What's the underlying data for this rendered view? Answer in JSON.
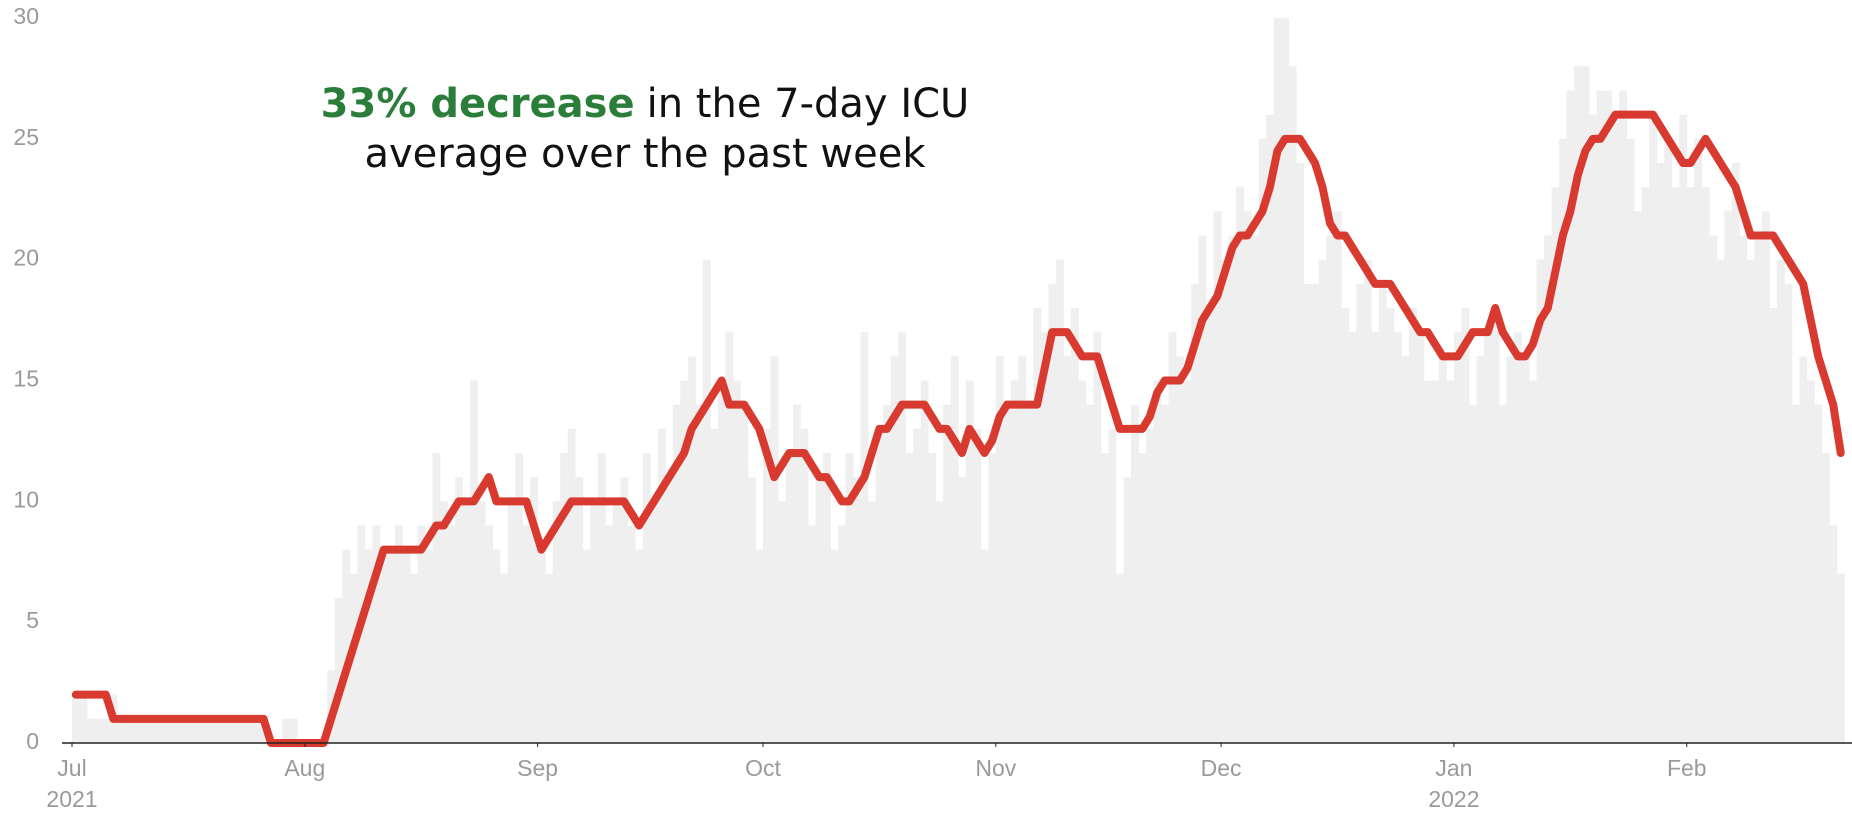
{
  "chart_data": {
    "type": "bar",
    "annotation": {
      "highlight": "33% decrease",
      "lines": [
        "in the 7-day ICU",
        "average over the past week"
      ]
    },
    "xlim": [
      0,
      237
    ],
    "xticks": [
      {
        "value": 0,
        "label": "Jul",
        "sublabel": "2021"
      },
      {
        "value": 31,
        "label": "Aug"
      },
      {
        "value": 62,
        "label": "Sep"
      },
      {
        "value": 92,
        "label": "Oct"
      },
      {
        "value": 123,
        "label": "Nov"
      },
      {
        "value": 153,
        "label": "Dec"
      },
      {
        "value": 184,
        "label": "Jan",
        "sublabel": "2022"
      },
      {
        "value": 215,
        "label": "Feb"
      }
    ],
    "ylim": [
      0,
      30
    ],
    "yticks": [
      0,
      5,
      10,
      15,
      20,
      25,
      30
    ],
    "grid": false,
    "x": [
      0,
      1,
      2,
      3,
      4,
      5,
      6,
      7,
      8,
      9,
      10,
      11,
      12,
      13,
      14,
      15,
      16,
      17,
      18,
      19,
      20,
      21,
      22,
      23,
      24,
      25,
      26,
      27,
      28,
      29,
      30,
      31,
      32,
      33,
      34,
      35,
      36,
      37,
      38,
      39,
      40,
      41,
      42,
      43,
      44,
      45,
      46,
      47,
      48,
      49,
      50,
      51,
      52,
      53,
      54,
      55,
      56,
      57,
      58,
      59,
      60,
      61,
      62,
      63,
      64,
      65,
      66,
      67,
      68,
      69,
      70,
      71,
      72,
      73,
      74,
      75,
      76,
      77,
      78,
      79,
      80,
      81,
      82,
      83,
      84,
      85,
      86,
      87,
      88,
      89,
      90,
      91,
      92,
      93,
      94,
      95,
      96,
      97,
      98,
      99,
      100,
      101,
      102,
      103,
      104,
      105,
      106,
      107,
      108,
      109,
      110,
      111,
      112,
      113,
      114,
      115,
      116,
      117,
      118,
      119,
      120,
      121,
      122,
      123,
      124,
      125,
      126,
      127,
      128,
      129,
      130,
      131,
      132,
      133,
      134,
      135,
      136,
      137,
      138,
      139,
      140,
      141,
      142,
      143,
      144,
      145,
      146,
      147,
      148,
      149,
      150,
      151,
      152,
      153,
      154,
      155,
      156,
      157,
      158,
      159,
      160,
      161,
      162,
      163,
      164,
      165,
      166,
      167,
      168,
      169,
      170,
      171,
      172,
      173,
      174,
      175,
      176,
      177,
      178,
      179,
      180,
      181,
      182,
      183,
      184,
      185,
      186,
      187,
      188,
      189,
      190,
      191,
      192,
      193,
      194,
      195,
      196,
      197,
      198,
      199,
      200,
      201,
      202,
      203,
      204,
      205,
      206,
      207,
      208,
      209,
      210,
      211,
      212,
      213,
      214,
      215,
      216,
      217,
      218,
      219,
      220,
      221,
      222,
      223,
      224,
      225,
      226,
      227,
      228,
      229,
      230,
      231,
      232,
      233,
      234,
      235
    ],
    "series": [
      {
        "type": "bar",
        "color": "#efefef",
        "values": [
          2,
          2,
          1,
          1,
          1,
          2,
          1,
          1,
          1,
          1,
          1,
          1,
          1,
          1,
          1,
          1,
          1,
          1,
          1,
          1,
          1,
          1,
          1,
          1,
          1,
          1,
          0,
          0,
          1,
          1,
          0,
          0,
          0,
          0,
          3,
          6,
          8,
          7,
          9,
          8,
          9,
          8,
          8,
          9,
          8,
          7,
          9,
          8,
          12,
          10,
          9,
          11,
          10,
          15,
          10,
          9,
          8,
          7,
          10,
          12,
          9,
          11,
          8,
          7,
          10,
          12,
          13,
          11,
          8,
          10,
          12,
          9,
          10,
          11,
          9,
          8,
          12,
          10,
          13,
          11,
          14,
          15,
          16,
          14,
          20,
          13,
          15,
          17,
          15,
          14,
          11,
          8,
          13,
          16,
          10,
          12,
          14,
          13,
          9,
          11,
          12,
          8,
          9,
          12,
          11,
          17,
          10,
          13,
          14,
          16,
          17,
          12,
          13,
          15,
          12,
          10,
          14,
          16,
          11,
          15,
          13,
          8,
          12,
          16,
          14,
          15,
          16,
          14,
          18,
          17,
          19,
          20,
          16,
          18,
          15,
          14,
          17,
          12,
          13,
          7,
          11,
          14,
          12,
          13,
          15,
          14,
          17,
          16,
          15,
          19,
          21,
          18,
          22,
          20,
          21,
          23,
          22,
          21,
          25,
          26,
          30,
          30,
          28,
          24,
          19,
          19,
          20,
          21,
          22,
          18,
          17,
          19,
          20,
          17,
          19,
          18,
          17,
          16,
          18,
          17,
          15,
          15,
          16,
          15,
          17,
          18,
          14,
          16,
          17,
          18,
          14,
          16,
          17,
          16,
          15,
          20,
          21,
          23,
          25,
          27,
          28,
          28,
          26,
          27,
          27,
          26,
          27,
          25,
          22,
          23,
          26,
          24,
          25,
          23,
          26,
          23,
          25,
          23,
          21,
          20,
          22,
          24,
          21,
          20,
          21,
          22,
          18,
          20,
          19,
          14,
          16,
          15,
          14,
          12,
          9,
          7
        ]
      },
      {
        "type": "line",
        "color": "#d93a30",
        "values": [
          2,
          2,
          2,
          2,
          2,
          1,
          1,
          1,
          1,
          1,
          1,
          1,
          1,
          1,
          1,
          1,
          1,
          1,
          1,
          1,
          1,
          1,
          1,
          1,
          1,
          1,
          0,
          0,
          0,
          0,
          0,
          0,
          0,
          0,
          1,
          2,
          3,
          4,
          5,
          6,
          7,
          8,
          8,
          8,
          8,
          8,
          8,
          8.5,
          9,
          9,
          9.5,
          10,
          10,
          10,
          10.5,
          11,
          10,
          10,
          10,
          10,
          10,
          9,
          8,
          8.5,
          9,
          9.5,
          10,
          10,
          10,
          10,
          10,
          10,
          10,
          10,
          9.5,
          9,
          9.5,
          10,
          10.5,
          11,
          11.5,
          12,
          13,
          13.5,
          14,
          14.5,
          15,
          14,
          14,
          14,
          13.5,
          13,
          12,
          11,
          11.5,
          12,
          12,
          12,
          11.5,
          11,
          11,
          10.5,
          10,
          10,
          10.5,
          11,
          12,
          13,
          13,
          13.5,
          14,
          14,
          14,
          14,
          13.5,
          13,
          13,
          12.5,
          12,
          13,
          12.5,
          12,
          12.5,
          13.5,
          14,
          14,
          14,
          14,
          14,
          15.5,
          17,
          17,
          17,
          16.5,
          16,
          16,
          16,
          15,
          14,
          13,
          13,
          13,
          13,
          13.5,
          14.5,
          15,
          15,
          15,
          15.5,
          16.5,
          17.5,
          18,
          18.5,
          19.5,
          20.5,
          21,
          21,
          21.5,
          22,
          23,
          24.5,
          25,
          25,
          25,
          24.5,
          24,
          23,
          21.5,
          21,
          21,
          20.5,
          20,
          19.5,
          19,
          19,
          19,
          18.5,
          18,
          17.5,
          17,
          17,
          16.5,
          16,
          16,
          16,
          16.5,
          17,
          17,
          17,
          18,
          17,
          16.5,
          16,
          16,
          16.5,
          17.5,
          18,
          19.5,
          21,
          22,
          23.5,
          24.5,
          25,
          25,
          25.5,
          26,
          26,
          26,
          26,
          26,
          26,
          25.5,
          25,
          24.5,
          24,
          24,
          24.5,
          25,
          24.5,
          24,
          23.5,
          23,
          22,
          21,
          21,
          21,
          21,
          20.5,
          20,
          19.5,
          19,
          17.5,
          16,
          15,
          14,
          12
        ]
      }
    ]
  }
}
